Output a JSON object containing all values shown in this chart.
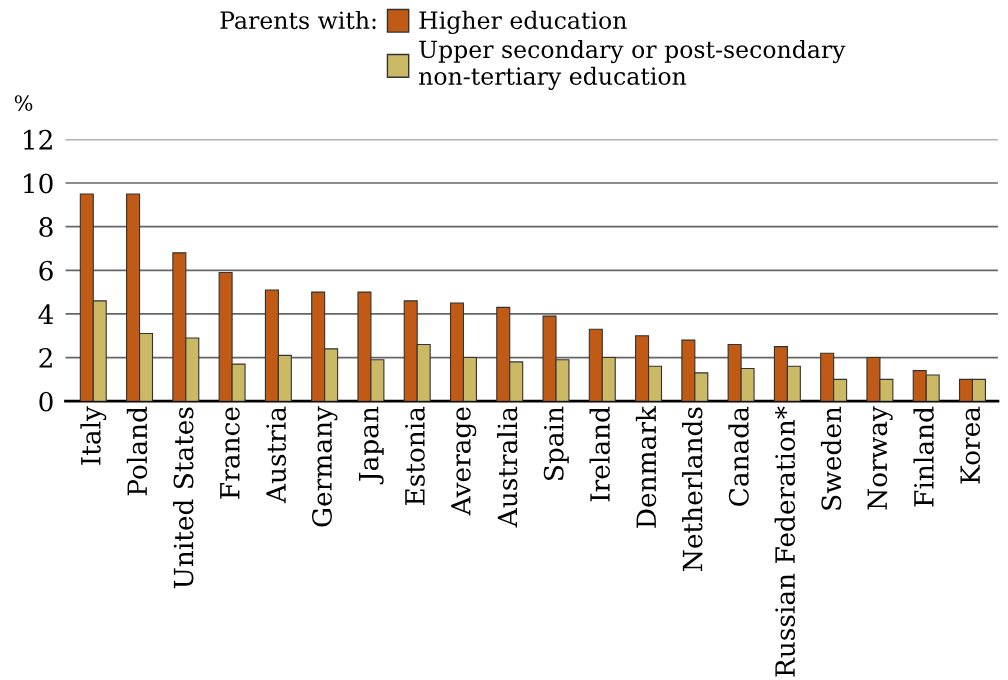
{
  "chart_data": {
    "type": "bar",
    "ylabel": "%",
    "legend_title": "Parents with:",
    "legend": "top",
    "categories": [
      "Italy",
      "Poland",
      "United States",
      "France",
      "Austria",
      "Germany",
      "Japan",
      "Estonia",
      "Average",
      "Australia",
      "Spain",
      "Ireland",
      "Denmark",
      "Netherlands",
      "Canada",
      "Russian Federation*",
      "Sweden",
      "Norway",
      "Finland",
      "Korea"
    ],
    "series": [
      {
        "name": "Higher education",
        "color": "#c05a14",
        "values": [
          9.5,
          9.5,
          6.8,
          5.9,
          5.1,
          5.0,
          5.0,
          4.6,
          4.5,
          4.3,
          3.9,
          3.3,
          3.0,
          2.8,
          2.6,
          2.5,
          2.2,
          2.0,
          1.4,
          1.0
        ]
      },
      {
        "name": "Upper secondary or post-secondary\nnon-tertiary education",
        "color": "#cbb966",
        "values": [
          4.6,
          3.1,
          2.9,
          1.7,
          2.1,
          2.4,
          1.9,
          2.6,
          2.0,
          1.8,
          1.9,
          2.0,
          1.6,
          1.3,
          1.5,
          1.6,
          1.0,
          1.0,
          1.2,
          1.0
        ]
      }
    ],
    "ylim": [
      0,
      12
    ],
    "yticks": [
      0,
      2,
      4,
      6,
      8,
      10,
      12
    ],
    "grid": "y"
  }
}
